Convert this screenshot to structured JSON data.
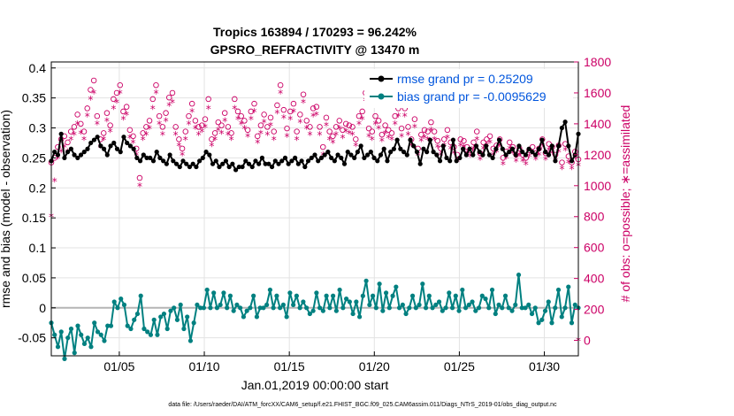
{
  "chart_data": {
    "type": "line",
    "title": [
      "Tropics 163894 / 170293 = 96.242%",
      "GPSRO_REFRACTIVITY @ 13470 m"
    ],
    "xlabel": "Jan.01,2019 00:00:00 start",
    "ylabel": "rmse and bias (model - observation)",
    "ylabel_right": "# of obs: o=possible; ∗=assimilated",
    "xlim": [
      1,
      32
    ],
    "ylim": [
      -0.08,
      0.41
    ],
    "ylim_right": [
      -100,
      1800
    ],
    "x_ticks": [
      5,
      10,
      15,
      20,
      25,
      30
    ],
    "x_tick_labels": [
      "01/05",
      "01/10",
      "01/15",
      "01/20",
      "01/25",
      "01/30"
    ],
    "y_ticks": [
      -0.05,
      0,
      0.05,
      0.1,
      0.15,
      0.2,
      0.25,
      0.3,
      0.35,
      0.4
    ],
    "y_tick_labels": [
      "-0.05",
      "0",
      "0.05",
      "0.1",
      "0.15",
      "0.2",
      "0.25",
      "0.3",
      "0.35",
      "0.4"
    ],
    "y_ticks_right": [
      0,
      200,
      400,
      600,
      800,
      1000,
      1200,
      1400,
      1600,
      1800
    ],
    "zero_line": 0,
    "legend": [
      {
        "name": "rmse grand pr = 0.25209",
        "color": "#000000"
      },
      {
        "name": "bias grand pr = -0.0095629",
        "color": "#008080"
      }
    ],
    "series": [
      {
        "name": "rmse",
        "color": "#000000",
        "values": [
          0.245,
          0.26,
          0.255,
          0.29,
          0.25,
          0.26,
          0.265,
          0.255,
          0.25,
          0.255,
          0.26,
          0.265,
          0.275,
          0.28,
          0.285,
          0.27,
          0.265,
          0.255,
          0.27,
          0.275,
          0.265,
          0.26,
          0.285,
          0.275,
          0.27,
          0.265,
          0.25,
          0.245,
          0.255,
          0.25,
          0.25,
          0.245,
          0.26,
          0.25,
          0.245,
          0.24,
          0.255,
          0.245,
          0.24,
          0.235,
          0.245,
          0.24,
          0.235,
          0.24,
          0.235,
          0.245,
          0.25,
          0.26,
          0.255,
          0.24,
          0.245,
          0.235,
          0.24,
          0.245,
          0.235,
          0.24,
          0.23,
          0.235,
          0.235,
          0.245,
          0.24,
          0.235,
          0.245,
          0.24,
          0.25,
          0.24,
          0.24,
          0.235,
          0.245,
          0.24,
          0.245,
          0.25,
          0.24,
          0.245,
          0.25,
          0.24,
          0.245,
          0.235,
          0.245,
          0.25,
          0.255,
          0.245,
          0.25,
          0.255,
          0.26,
          0.25,
          0.245,
          0.255,
          0.25,
          0.24,
          0.26,
          0.255,
          0.25,
          0.26,
          0.27,
          0.25,
          0.255,
          0.26,
          0.25,
          0.245,
          0.255,
          0.265,
          0.245,
          0.26,
          0.265,
          0.28,
          0.265,
          0.26,
          0.255,
          0.28,
          0.27,
          0.26,
          0.24,
          0.265,
          0.26,
          0.28,
          0.26,
          0.255,
          0.245,
          0.27,
          0.25,
          0.245,
          0.28,
          0.245,
          0.25,
          0.265,
          0.255,
          0.265,
          0.255,
          0.27,
          0.26,
          0.255,
          0.27,
          0.255,
          0.25,
          0.265,
          0.28,
          0.265,
          0.255,
          0.26,
          0.265,
          0.255,
          0.27,
          0.26,
          0.255,
          0.265,
          0.26,
          0.255,
          0.265,
          0.28,
          0.26,
          0.255,
          0.27,
          0.245,
          0.27,
          0.3,
          0.31,
          0.27,
          0.245,
          0.255,
          0.29
        ]
      },
      {
        "name": "bias",
        "color": "#008080",
        "values": [
          -0.025,
          -0.045,
          -0.065,
          -0.04,
          -0.085,
          -0.05,
          -0.035,
          -0.075,
          -0.03,
          -0.045,
          -0.06,
          -0.05,
          -0.065,
          -0.025,
          -0.04,
          -0.045,
          -0.055,
          -0.03,
          -0.03,
          0.01,
          0.0,
          0.015,
          0.005,
          -0.03,
          -0.035,
          -0.02,
          -0.01,
          0.02,
          -0.035,
          -0.04,
          -0.045,
          -0.02,
          -0.045,
          -0.015,
          -0.01,
          -0.035,
          -0.005,
          0.0,
          -0.02,
          0.005,
          -0.035,
          -0.015,
          -0.055,
          -0.025,
          0.005,
          0.0,
          0.0,
          0.03,
          0.0,
          0.025,
          0.0,
          0.005,
          0.025,
          0.0,
          0.02,
          -0.005,
          0.005,
          0.0,
          -0.015,
          -0.005,
          0.0,
          0.02,
          -0.015,
          0.0,
          0.0,
          0.005,
          0.03,
          0.0,
          0.02,
          0.0,
          0.005,
          -0.015,
          0.025,
          0.005,
          0.02,
          0.0,
          0.01,
          0.0,
          -0.01,
          -0.005,
          0.025,
          0.0,
          -0.005,
          0.02,
          0.0,
          0.02,
          -0.005,
          0.03,
          0.0,
          0.015,
          0.01,
          -0.01,
          0.01,
          -0.015,
          0.02,
          0.045,
          0.005,
          0.02,
          0.0,
          0.04,
          -0.005,
          0.025,
          0.0,
          0.02,
          0.035,
          0.0,
          0.005,
          -0.01,
          0.0,
          0.02,
          0.0,
          0.005,
          0.04,
          0.0,
          0.02,
          0.0,
          0.005,
          0.01,
          -0.005,
          0.0,
          0.025,
          0.0,
          0.02,
          -0.005,
          0.03,
          0.0,
          0.005,
          0.01,
          -0.005,
          0.0,
          0.02,
          0.015,
          0.0,
          0.03,
          -0.01,
          0.005,
          0.0,
          0.02,
          0.0,
          -0.005,
          0.005,
          0.055,
          0.0,
          0.0,
          0.005,
          -0.01,
          0.0,
          -0.025,
          -0.02,
          -0.005,
          0.01,
          -0.025,
          0.0,
          0.03,
          -0.015,
          0.0,
          0.035,
          -0.025,
          0.005,
          0.0
        ]
      },
      {
        "name": "obs possible",
        "color": "#cc0066",
        "marker": "o",
        "axis": "right",
        "values": [
          1150,
          1180,
          1250,
          1300,
          1320,
          1280,
          1350,
          1380,
          1460,
          1400,
          1350,
          1500,
          1620,
          1680,
          1450,
          1300,
          1340,
          1470,
          1390,
          1560,
          1600,
          1650,
          1480,
          1510,
          1360,
          1320,
          1240,
          1050,
          1340,
          1380,
          1420,
          1560,
          1650,
          1450,
          1380,
          1470,
          1570,
          1600,
          1380,
          1300,
          1240,
          1350,
          1450,
          1530,
          1420,
          1380,
          1390,
          1430,
          1560,
          1300,
          1340,
          1410,
          1390,
          1470,
          1380,
          1340,
          1560,
          1480,
          1450,
          1420,
          1360,
          1480,
          1530,
          1320,
          1390,
          1460,
          1380,
          1440,
          1350,
          1520,
          1650,
          1490,
          1370,
          1480,
          1530,
          1350,
          1460,
          1590,
          1420,
          1380,
          1500,
          1510,
          1380,
          1250,
          1440,
          1350,
          1320,
          1380,
          1420,
          1360,
          1400,
          1390,
          1380,
          1300,
          1450,
          1480,
          1600,
          1370,
          1350,
          1450,
          1420,
          1330,
          1390,
          1360,
          1340,
          1450,
          1500,
          1370,
          1500,
          1380,
          1300,
          1430,
          1240,
          1330,
          1360,
          1350,
          1410,
          1350,
          1290,
          1240,
          1300,
          1360,
          1280,
          1250,
          1200,
          1300,
          1290,
          1250,
          1230,
          1280,
          1350,
          1210,
          1280,
          1300,
          1320,
          1240,
          1260,
          1300,
          1180,
          1220,
          1280,
          1250,
          1200,
          1240,
          1200,
          1180,
          1230,
          1250,
          1210,
          1240,
          1300,
          1210,
          1270,
          1250,
          1200,
          1260,
          1150,
          1270,
          1190,
          1150,
          1220,
          1170
        ]
      },
      {
        "name": "obs assimilated",
        "color": "#cc0066",
        "marker": "*",
        "axis": "right",
        "values": [
          800,
          1030,
          1180,
          1220,
          1250,
          1220,
          1300,
          1330,
          1400,
          1340,
          1300,
          1450,
          1560,
          1600,
          1400,
          1250,
          1300,
          1420,
          1350,
          1500,
          1540,
          1600,
          1430,
          1460,
          1310,
          1280,
          1200,
          1000,
          1300,
          1330,
          1370,
          1500,
          1600,
          1400,
          1330,
          1420,
          1520,
          1540,
          1330,
          1260,
          1200,
          1300,
          1400,
          1480,
          1370,
          1330,
          1350,
          1380,
          1500,
          1260,
          1300,
          1360,
          1340,
          1420,
          1330,
          1300,
          1500,
          1430,
          1400,
          1370,
          1320,
          1430,
          1480,
          1280,
          1340,
          1410,
          1330,
          1390,
          1300,
          1470,
          1600,
          1440,
          1320,
          1430,
          1480,
          1300,
          1410,
          1540,
          1370,
          1330,
          1450,
          1460,
          1330,
          1200,
          1390,
          1300,
          1280,
          1330,
          1370,
          1310,
          1350,
          1340,
          1330,
          1260,
          1400,
          1430,
          1550,
          1320,
          1300,
          1400,
          1370,
          1290,
          1340,
          1310,
          1300,
          1400,
          1450,
          1320,
          1450,
          1330,
          1260,
          1380,
          1200,
          1290,
          1310,
          1300,
          1360,
          1300,
          1250,
          1200,
          1260,
          1310,
          1240,
          1210,
          1160,
          1260,
          1250,
          1210,
          1190,
          1240,
          1300,
          1170,
          1240,
          1260,
          1280,
          1200,
          1220,
          1260,
          1140,
          1180,
          1240,
          1210,
          1160,
          1200,
          1160,
          1140,
          1190,
          1210,
          1170,
          1200,
          1260,
          1170,
          1230,
          1210,
          1160,
          1220,
          1110,
          1230,
          1150,
          1110,
          1180,
          1130
        ]
      }
    ],
    "extra_point": {
      "x": 32,
      "value": 0,
      "marker": "*",
      "color": "#cc0066"
    }
  },
  "footer": "data file: /Users/raeder/DAI/ATM_forcXX/CAM6_setup/f.e21.FHIST_BGC.f09_025.CAM6assim.011/Diags_NTrS_2019-01/obs_diag_output.nc"
}
